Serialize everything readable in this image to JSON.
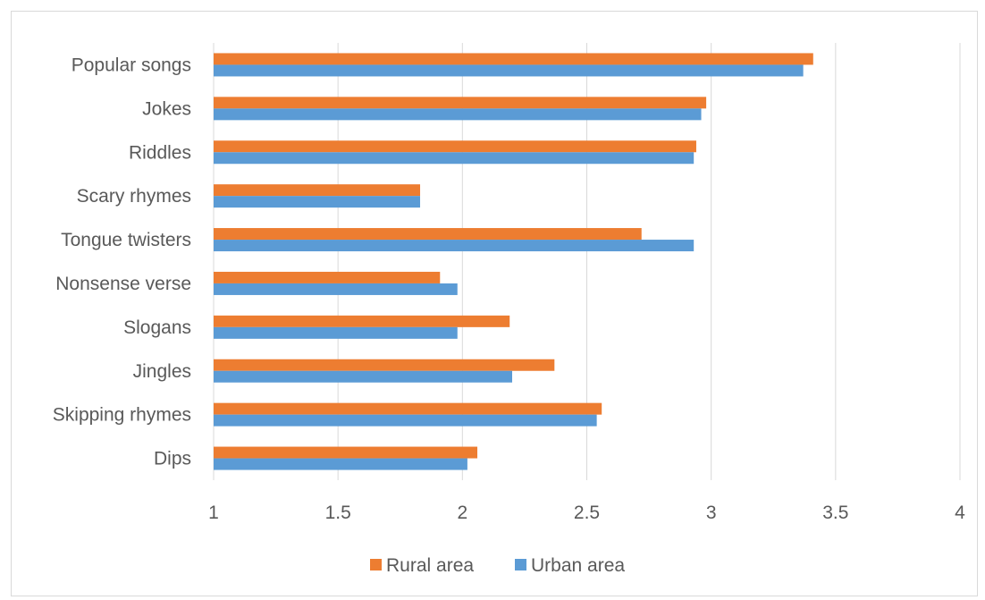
{
  "chart_data": {
    "type": "bar",
    "orientation": "horizontal",
    "title": "",
    "xlabel": "",
    "ylabel": "",
    "xlim": [
      1,
      4
    ],
    "x_ticks": [
      1,
      1.5,
      2,
      2.5,
      3,
      3.5,
      4
    ],
    "x_tick_labels": [
      "1",
      "1.5",
      "2",
      "2.5",
      "3",
      "3.5",
      "4"
    ],
    "grid": true,
    "legend_position": "bottom",
    "categories": [
      "Popular songs",
      "Jokes",
      "Riddles",
      "Scary rhymes",
      "Tongue twisters",
      "Nonsense verse",
      "Slogans",
      "Jingles",
      "Skipping rhymes",
      "Dips"
    ],
    "series": [
      {
        "name": "Rural area",
        "color": "#ed7d31",
        "values": [
          3.41,
          2.98,
          2.94,
          1.83,
          2.72,
          1.91,
          2.19,
          2.37,
          2.56,
          2.06
        ]
      },
      {
        "name": "Urban area",
        "color": "#5b9bd5",
        "values": [
          3.37,
          2.96,
          2.93,
          1.83,
          2.93,
          1.98,
          1.98,
          2.2,
          2.54,
          2.02
        ]
      }
    ]
  }
}
